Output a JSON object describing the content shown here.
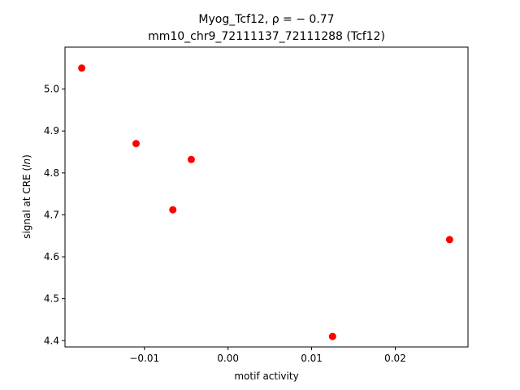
{
  "chart_data": {
    "type": "scatter",
    "title_line1": "Myog_Tcf12, ρ = − 0.77",
    "title_line2": "mm10_chr9_72111137_72111288 (Tcf12)",
    "xlabel": "motif activity",
    "ylabel": "signal at CRE (ln)",
    "xlim": [
      -0.0195,
      0.0287
    ],
    "ylim": [
      4.385,
      5.1
    ],
    "xticks": [
      -0.01,
      0.0,
      0.01,
      0.02
    ],
    "xtick_labels": [
      "−0.01",
      "0.00",
      "0.01",
      "0.02"
    ],
    "yticks": [
      4.4,
      4.5,
      4.6,
      4.7,
      4.8,
      4.9,
      5.0
    ],
    "ytick_labels": [
      "4.4",
      "4.5",
      "4.6",
      "4.7",
      "4.8",
      "4.9",
      "5.0"
    ],
    "grid": false,
    "legend": null,
    "marker_color": "#ff0000",
    "points": [
      {
        "x": -0.0175,
        "y": 5.05
      },
      {
        "x": -0.011,
        "y": 4.87
      },
      {
        "x": -0.0066,
        "y": 4.712
      },
      {
        "x": -0.0044,
        "y": 4.832
      },
      {
        "x": 0.0125,
        "y": 4.41
      },
      {
        "x": 0.0265,
        "y": 4.641
      }
    ]
  }
}
